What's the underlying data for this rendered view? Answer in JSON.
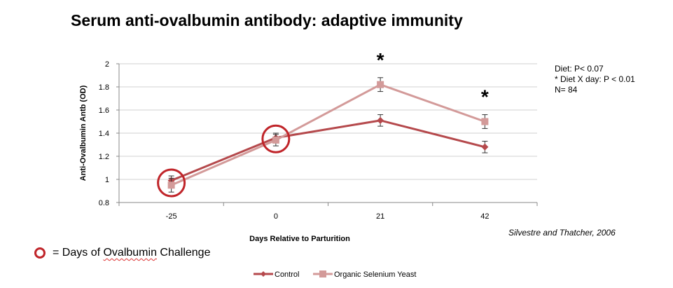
{
  "header": {
    "title": "Serum anti-ovalbumin antibody: adaptive immunity"
  },
  "annotations": {
    "stats": [
      "Diet: P< 0.07",
      "* Diet X day: P < 0.01",
      "N= 84"
    ],
    "citation": "Silvestre and Thatcher, 2006",
    "challenge_legend": {
      "prefix": "= Days of ",
      "highlighted": "Ovalbumin",
      "suffix": " Challenge",
      "ring_color": "#c0252a"
    }
  },
  "chart_data": {
    "type": "line",
    "title": "",
    "xlabel": "Days Relative to Parturition",
    "ylabel": "Anti-Ovalbumin Antb (OD)",
    "categories": [
      "-25",
      "0",
      "21",
      "42"
    ],
    "ylim": [
      0.8,
      2.0
    ],
    "yticks": [
      "0.8",
      "1",
      "1.2",
      "1.4",
      "1.6",
      "1.8",
      "2"
    ],
    "grid": true,
    "legend": "bottom",
    "series": [
      {
        "name": "Control",
        "color": "#b5494c",
        "marker": "diamond",
        "values": [
          0.99,
          1.36,
          1.51,
          1.28
        ],
        "errors": [
          0.04,
          0.04,
          0.05,
          0.05
        ]
      },
      {
        "name": "Organic Selenium  Yeast",
        "color": "#d39a99",
        "marker": "square",
        "values": [
          0.95,
          1.34,
          1.82,
          1.5
        ],
        "errors": [
          0.06,
          0.05,
          0.06,
          0.06
        ]
      }
    ],
    "significance": [
      {
        "category": "21",
        "label": "*"
      },
      {
        "category": "42",
        "label": "*"
      }
    ],
    "challenge_days": [
      "-25",
      "0"
    ]
  }
}
